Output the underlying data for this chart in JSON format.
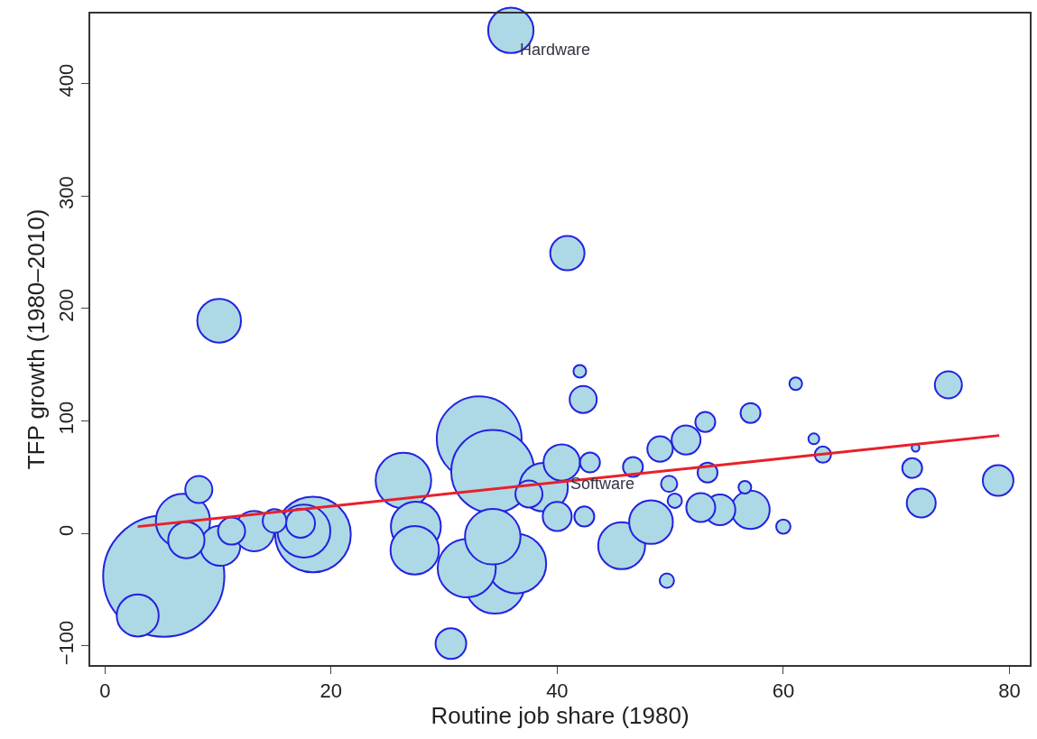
{
  "chart_data": {
    "type": "bubble",
    "xlabel": "Routine job share (1980)",
    "ylabel": "TFP growth (1980–2010)",
    "xlim": [
      -1.3,
      81.8
    ],
    "ylim": [
      -117,
      462
    ],
    "xticks": [
      0,
      20,
      40,
      60,
      80
    ],
    "yticks": [
      {
        "value": -100,
        "label": "−100"
      },
      0,
      100,
      200,
      300,
      400
    ],
    "grid": false,
    "series": [
      {
        "color": "#add8e6",
        "x": [
          5.2,
          33.1,
          34.3,
          18.4,
          34.5,
          36.4,
          32.0,
          26.4,
          34.3,
          6.9,
          17.6,
          27.5,
          27.4,
          38.8,
          45.7,
          35.9,
          48.3,
          10.1,
          2.9,
          10.2,
          13.2,
          57.1,
          7.2,
          40.4,
          40.9,
          30.6,
          54.4,
          79.0,
          17.3,
          40.0,
          51.4,
          52.7,
          72.2,
          8.3,
          11.2,
          37.5,
          42.3,
          74.6,
          49.1,
          15.0,
          42.9,
          42.4,
          46.7,
          53.1,
          57.1,
          53.3,
          71.4,
          49.9,
          63.5,
          50.4,
          49.7,
          60.0,
          42.0,
          56.6,
          61.1,
          62.7,
          71.7
        ],
        "values": [
          -38,
          84,
          55,
          -1,
          -45,
          -27,
          -31,
          47,
          -3,
          11,
          2,
          6,
          -15,
          41,
          -11,
          447,
          10,
          189,
          -73,
          -11,
          2,
          21,
          -6,
          63,
          249,
          -98,
          21,
          47,
          9,
          15,
          83,
          23,
          27,
          39,
          2,
          35,
          119,
          132,
          75,
          11,
          63,
          15,
          59,
          99,
          107,
          54,
          58,
          44,
          70,
          29,
          -42,
          6,
          144,
          41,
          133,
          84,
          76
        ],
        "sizes": [
          1,
          0.49,
          0.47,
          0.39,
          0.24,
          0.24,
          0.23,
          0.21,
          0.21,
          0.2,
          0.19,
          0.17,
          0.16,
          0.16,
          0.15,
          0.14,
          0.13,
          0.13,
          0.12,
          0.11,
          0.11,
          0.1,
          0.09,
          0.09,
          0.08,
          0.064,
          0.064,
          0.064,
          0.057,
          0.057,
          0.057,
          0.057,
          0.057,
          0.05,
          0.05,
          0.05,
          0.05,
          0.05,
          0.044,
          0.038,
          0.027,
          0.027,
          0.027,
          0.027,
          0.027,
          0.027,
          0.027,
          0.018,
          0.018,
          0.014,
          0.014,
          0.014,
          0.011,
          0.011,
          0.011,
          0.008,
          0.004
        ]
      },
      {
        "type": "line",
        "color": "#e8202a",
        "line_style": "solid",
        "marker": "none",
        "x": [
          2.9,
          79.1
        ],
        "values": [
          6,
          87
        ]
      }
    ],
    "annotations": [
      {
        "text": "Hardware",
        "x": 36.5,
        "y": 430
      },
      {
        "text": "Software",
        "x": 41.0,
        "y": 44
      }
    ]
  }
}
